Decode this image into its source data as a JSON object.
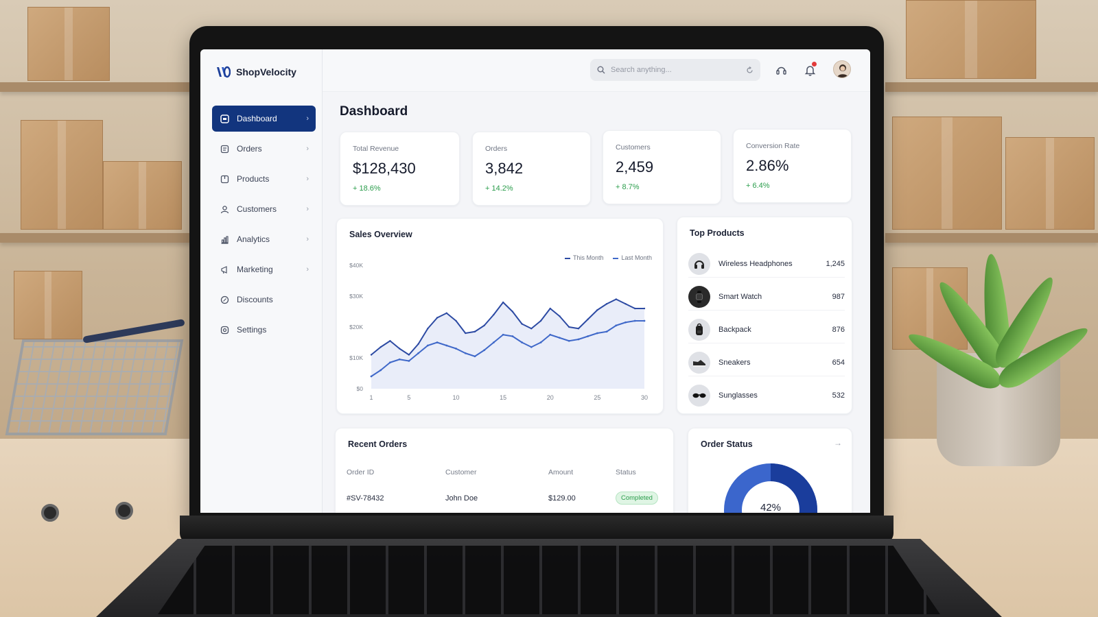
{
  "brand": {
    "name": "ShopVelocity"
  },
  "nav": {
    "items": [
      {
        "label": "Dashboard",
        "icon": "dashboard-icon",
        "active": true
      },
      {
        "label": "Orders",
        "icon": "orders-icon",
        "active": false
      },
      {
        "label": "Products",
        "icon": "products-icon",
        "active": false
      },
      {
        "label": "Customers",
        "icon": "customers-icon",
        "active": false
      },
      {
        "label": "Analytics",
        "icon": "analytics-icon",
        "active": false
      },
      {
        "label": "Marketing",
        "icon": "marketing-icon",
        "active": false
      },
      {
        "label": "Discounts",
        "icon": "discounts-icon",
        "active": false
      },
      {
        "label": "Settings",
        "icon": "settings-icon",
        "active": false
      }
    ]
  },
  "topbar": {
    "search_placeholder": "Search anything...",
    "has_notification": true
  },
  "page": {
    "title": "Dashboard"
  },
  "kpis": [
    {
      "label": "Total Revenue",
      "value": "$128,430",
      "change": "+ 18.6%"
    },
    {
      "label": "Orders",
      "value": "3,842",
      "change": "+ 14.2%"
    },
    {
      "label": "Customers",
      "value": "2,459",
      "change": "+ 8.7%"
    },
    {
      "label": "Conversion Rate",
      "value": "2.86%",
      "change": "+ 6.4%"
    }
  ],
  "sales_overview": {
    "title": "Sales Overview"
  },
  "chart_data": {
    "type": "line",
    "x": [
      1,
      2,
      3,
      4,
      5,
      6,
      7,
      8,
      9,
      10,
      11,
      12,
      13,
      14,
      15,
      16,
      17,
      18,
      19,
      20,
      21,
      22,
      23,
      24,
      25,
      26,
      27,
      28,
      29,
      30
    ],
    "xticks": [
      "1",
      "5",
      "10",
      "15",
      "20",
      "25",
      "30"
    ],
    "yticks": [
      "$0",
      "$10K",
      "$20K",
      "$30K",
      "$40K"
    ],
    "ylim": [
      0,
      40000
    ],
    "series": [
      {
        "name": "This Month",
        "values": [
          11000,
          13500,
          15500,
          13000,
          11000,
          14500,
          19500,
          23000,
          24500,
          22000,
          18000,
          18500,
          20500,
          24000,
          28000,
          25000,
          21000,
          19500,
          22000,
          26000,
          23500,
          20000,
          19500,
          22500,
          25500,
          27500,
          29000,
          27500,
          26000,
          26000
        ]
      },
      {
        "name": "Last Month",
        "values": [
          4000,
          6000,
          8500,
          9500,
          9000,
          11500,
          14000,
          15000,
          14000,
          13000,
          11500,
          10500,
          12500,
          15000,
          17500,
          17000,
          15000,
          13500,
          15000,
          17500,
          16500,
          15500,
          16000,
          17000,
          18000,
          18500,
          20500,
          21500,
          22000,
          22000
        ]
      }
    ],
    "colors": {
      "this_month": "#2c4aa3",
      "last_month": "#3f68c9",
      "fill": "#dfe6f6"
    },
    "grid": false,
    "legend": "top-right"
  },
  "top_products": {
    "title": "Top Products",
    "items": [
      {
        "name": "Wireless Headphones",
        "value": "1,245",
        "icon": "headphones-icon"
      },
      {
        "name": "Smart Watch",
        "value": "987",
        "icon": "watch-icon"
      },
      {
        "name": "Backpack",
        "value": "876",
        "icon": "backpack-icon"
      },
      {
        "name": "Sneakers",
        "value": "654",
        "icon": "sneaker-icon"
      },
      {
        "name": "Sunglasses",
        "value": "532",
        "icon": "sunglasses-icon"
      }
    ]
  },
  "recent_orders": {
    "title": "Recent Orders",
    "columns": [
      "Order ID",
      "Customer",
      "Amount",
      "Status"
    ],
    "rows": [
      {
        "id": "#SV-78432",
        "customer": "John Doe",
        "amount": "$129.00",
        "status": "Completed"
      }
    ]
  },
  "order_status": {
    "title": "Order Status",
    "percent_label": "42%",
    "percent": 42
  },
  "colors": {
    "accent": "#12357e",
    "positive": "#2a9d4b",
    "alert": "#e23b3b"
  }
}
